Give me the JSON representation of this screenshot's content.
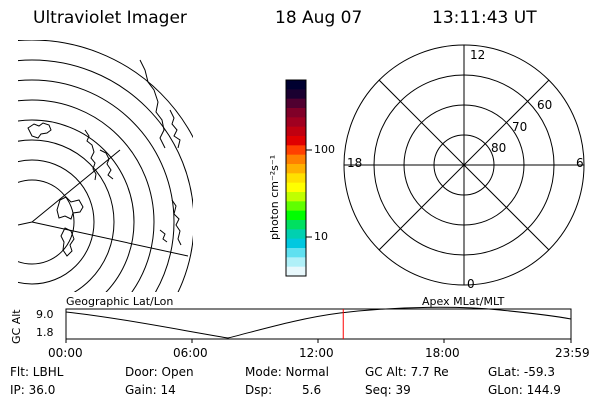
{
  "header": {
    "title": "Ultraviolet Imager",
    "date": "18 Aug 07",
    "time": "13:11:43 UT"
  },
  "colorbar": {
    "unit_label": "photon cm⁻²s⁻¹",
    "ticks": [
      "100",
      "10"
    ],
    "colors": [
      "#000030",
      "#1a0030",
      "#500030",
      "#800028",
      "#a00020",
      "#c00010",
      "#e00000",
      "#ff4000",
      "#ff8000",
      "#ffb000",
      "#ffe000",
      "#ffff00",
      "#c0ff00",
      "#60ff00",
      "#00ff00",
      "#00e060",
      "#00d0b0",
      "#00c8e0",
      "#60e0f0",
      "#b0f0f8",
      "#e8f8fc"
    ]
  },
  "polar": {
    "mlt_labels": [
      "12",
      "18",
      "6",
      "0"
    ],
    "lat_labels": [
      "60",
      "70",
      "80"
    ]
  },
  "left_map": {
    "label": "Geographic Lat/Lon"
  },
  "orbit": {
    "y_axis_label": "GC Alt",
    "y_ticks": [
      "9.0",
      "1.8"
    ],
    "right_label": "Apex MLat/MLT",
    "x_ticks": [
      "00:00",
      "06:00",
      "12:00",
      "18:00",
      "23:59"
    ],
    "current_time_fraction": 0.549,
    "marker_color": "#ff0000"
  },
  "status": {
    "flt": "Flt: LBHL",
    "ip": "IP: 36.0",
    "door": "Door: Open",
    "gain": "Gain: 14",
    "mode": "Mode: Normal",
    "dsp_label": "Dsp:",
    "dsp_value": "5.6",
    "gc_alt": "GC Alt: 7.7 Re",
    "seq": "Seq: 39",
    "glat": "GLat: -59.3",
    "glon": "GLon: 144.9"
  }
}
